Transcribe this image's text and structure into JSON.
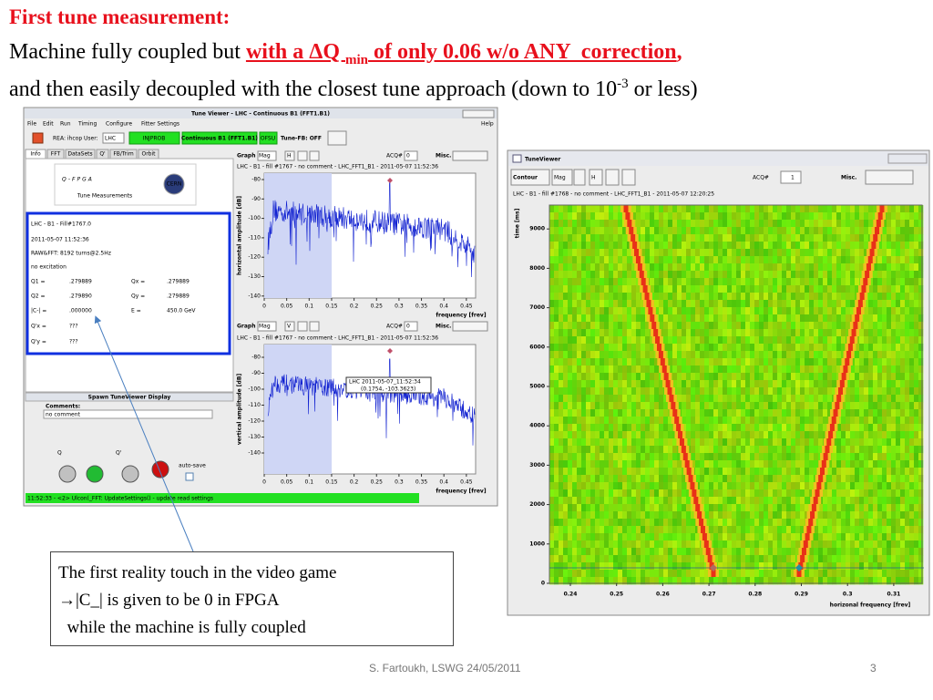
{
  "heading": {
    "line1": "First tune measurement:",
    "line2_plain": "Machine fully coupled but ",
    "line2_red_a": "with a ΔQ ",
    "line2_sub": "min",
    "line2_red_b": " of only 0.06 w/o ANY  correction",
    "line2_comma": ",",
    "line3_a": "and then easily decoupled with the closest tune approach (down to 10",
    "line3_sup": "-3",
    "line3_b": " or less)"
  },
  "left_window": {
    "title": "Tune Viewer - LHC - Continuous B1 (FFT1.B1)",
    "menu": [
      "File",
      "Edit",
      "Run",
      "Timing",
      "Configure",
      "Fitter Settings"
    ],
    "help": "Help",
    "toolbar": {
      "rea": "REA: ihcop User:",
      "user": "LHC",
      "injprob": "INJPROB",
      "mode": "Continuous B1 (FFT1.B1)",
      "ofsu": "OFSU",
      "tune_fb": "Tune-FB: OFF"
    },
    "tabs": [
      "Info",
      "FFT",
      "DataSets",
      "Q'",
      "FB/Trim",
      "Orbit"
    ],
    "logo": {
      "name": "Q-FPGA",
      "caption": "Tune Measurements",
      "cern": "CERN"
    },
    "info": {
      "lines": [
        "LHC - B1 - Fill#1767.0",
        "2011-05-07 11:52:36",
        "RAW&FFT: 8192 turns@2.5Hz",
        "no excitation"
      ],
      "rows": [
        [
          "Q1 =",
          ".279889",
          "Qx =",
          ".279889"
        ],
        [
          "Q2 =",
          ".279890",
          "Qy =",
          ".279889"
        ],
        [
          "|C-| =",
          ".000000",
          "E =",
          "450.0 GeV"
        ],
        [
          "Q'x =",
          "???"
        ],
        [
          "Q'y =",
          "???"
        ]
      ]
    },
    "spawn": "Spawn TuneViewer Display",
    "comments_label": "Comments:",
    "comments_value": "no comment",
    "q_label": "Q",
    "qprime_label": "Q'",
    "auto_save": "auto-save",
    "status": "11:52:33 - <2> Ulcon(_FFT: UpdateSettings() - update read settings",
    "top_plot": {
      "toolbar": [
        "Graph",
        "Mag",
        "H",
        "ACQ#",
        "0",
        "Misc."
      ],
      "subtitle": "LHC - B1 - fill #1767 - no comment - LHC_FFT1_B1 - 2011-05-07 11:52:36",
      "ylabel": "horizontal amplitude [dB]",
      "yticks": [
        "-80",
        "-90",
        "-100",
        "-110",
        "-120",
        "-130",
        "-140"
      ],
      "xticks": [
        "0",
        "0.05",
        "0.1",
        "0.15",
        "0.2",
        "0.25",
        "0.3",
        "0.35",
        "0.4",
        "0.45"
      ],
      "xlabel": "frequency [frev]"
    },
    "bottom_plot": {
      "toolbar": [
        "Graph",
        "Mag",
        "V",
        "ACQ#",
        "0",
        "Misc."
      ],
      "subtitle": "LHC - B1 - fill #1767 - no comment - LHC_FFT1_B1 - 2011-05-07 11:52:36",
      "ylabel": "vertical amplitude [dB]",
      "yticks": [
        "-80",
        "-90",
        "-100",
        "-110",
        "-120",
        "-130",
        "-140"
      ],
      "xticks": [
        "0",
        "0.05",
        "0.1",
        "0.15",
        "0.2",
        "0.25",
        "0.3",
        "0.35",
        "0.4",
        "0.45"
      ],
      "xlabel": "frequency [frev]",
      "tooltip": [
        "LHC 2011-05-07_11:52:34",
        "(0.1754, -103.3623)"
      ]
    }
  },
  "right_window": {
    "title": "TuneViewer",
    "toolbar": [
      "Contour",
      "Mag",
      "H",
      "ACQ#",
      "1",
      "Misc."
    ],
    "subtitle": "LHC - B1 - fill #1768 - no comment - LHC_FFT1_B1 - 2011-05-07 12:20:25",
    "ylabel": "time [ms]",
    "yticks": [
      "0",
      "1000",
      "2000",
      "3000",
      "4000",
      "5000",
      "6000",
      "7000",
      "8000",
      "9000"
    ],
    "xticks": [
      "0.24",
      "0.25",
      "0.26",
      "0.27",
      "0.28",
      "0.29",
      "0.3",
      "0.31"
    ],
    "xlabel": "horizonal frequency [frev]"
  },
  "callout": [
    "The first reality touch in the video game",
    "→|C_| is given to be 0 in FPGA",
    "  while the machine is fully coupled"
  ],
  "footer": {
    "author": "S. Fartoukh, LSWG 24/05/2011",
    "page": "3"
  }
}
